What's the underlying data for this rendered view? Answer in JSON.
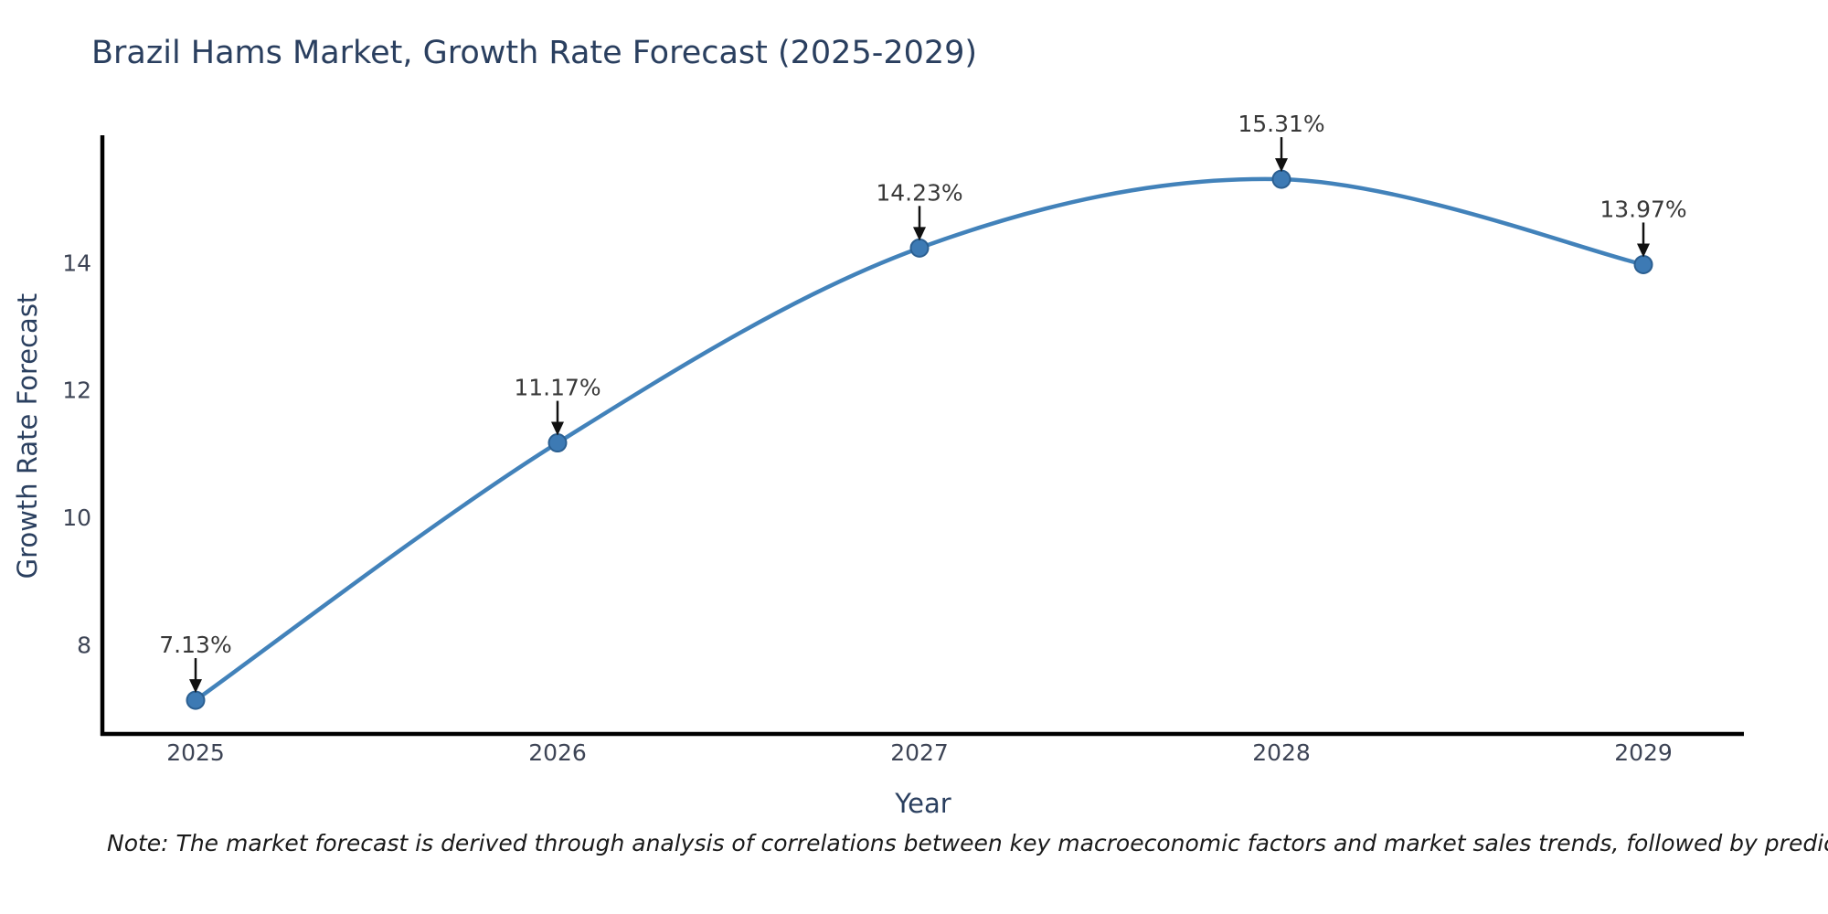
{
  "note": {
    "text": "Note: The market forecast is derived through analysis of correlations between key macroeconomic factors and market sales trends, followed by predictive modeling to project future sales."
  },
  "chart_data": {
    "type": "line",
    "title": "Brazil Hams Market, Growth Rate Forecast (2025-2029)",
    "xlabel": "Year",
    "ylabel": "Growth Rate Forecast",
    "x": [
      2025,
      2026,
      2027,
      2028,
      2029
    ],
    "series": [
      {
        "name": "Growth Rate Forecast",
        "values": [
          7.13,
          11.17,
          14.23,
          15.31,
          13.97
        ]
      }
    ],
    "point_labels": [
      "7.13%",
      "11.17%",
      "14.23%",
      "15.31%",
      "13.97%"
    ],
    "yticks": [
      8,
      10,
      12,
      14
    ],
    "ylim": [
      6.6,
      16.0
    ],
    "grid": false,
    "legend": "none",
    "curve": "spline",
    "colors": {
      "line": "#4282ba",
      "marker_fill": "#3d7ab4",
      "marker_edge": "#2b5f91",
      "axis": "#000000",
      "tick_label": "#3d4455",
      "annotation_text": "#383838",
      "annotation_arrow": "#111111",
      "title": "#2a3f5f",
      "background": "#ffffff"
    }
  }
}
